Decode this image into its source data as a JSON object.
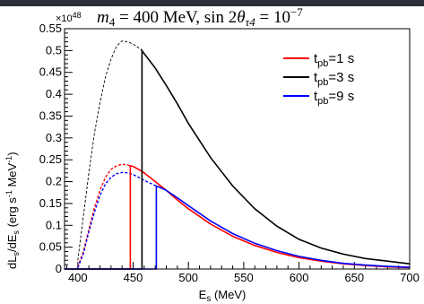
{
  "chart_data": {
    "type": "line",
    "title": "m4 = 400 MeV,  sin 2θτ4 = 10−7",
    "title_parts": {
      "m_symbol": "m",
      "m_sub": "4",
      "m_value": " = 400 MeV,  sin 2",
      "theta": "θ",
      "theta_sub": "τ4",
      "equals": " = 10",
      "power": "−7"
    },
    "y_multiplier": "×10",
    "y_multiplier_exp": "48",
    "xlabel_main": "E",
    "xlabel_sub": "s",
    "xlabel_unit": " (MeV)",
    "ylabel_parts": {
      "d1": "dL",
      "s1": "s",
      "mid": "/dE",
      "s2": "s",
      "unit": " (erg s",
      "e1": "-1",
      "mev": " MeV",
      "e2": "-1",
      "close": ")"
    },
    "xlim": [
      388,
      700
    ],
    "ylim": [
      0,
      0.55
    ],
    "x_ticks": [
      400,
      450,
      500,
      550,
      600,
      650,
      700
    ],
    "x_tick_labels": [
      "400",
      "450",
      "500",
      "550",
      "600",
      "650",
      "700"
    ],
    "y_ticks": [
      0,
      0.05,
      0.1,
      0.15,
      0.2,
      0.25,
      0.3,
      0.35,
      0.4,
      0.45,
      0.5,
      0.55
    ],
    "y_tick_labels": [
      "0",
      "0.05",
      "0.1",
      "0.15",
      "0.2",
      "0.25",
      "0.3",
      "0.35",
      "0.4",
      "0.45",
      "0.5",
      "0.55"
    ],
    "legend_position": "top-right",
    "grid": false,
    "series": [
      {
        "name": "t_pb=1 s",
        "legend_main": "t",
        "legend_sub": "pb",
        "legend_rest": "=1 s",
        "color": "#ff0000",
        "cutoff": 447.5,
        "dashed": {
          "x": [
            400,
            405,
            410,
            415,
            420,
            425,
            430,
            435,
            440,
            445,
            447.5
          ],
          "y": [
            0.005,
            0.04,
            0.09,
            0.14,
            0.18,
            0.21,
            0.228,
            0.236,
            0.24,
            0.238,
            0.236
          ]
        },
        "solid": {
          "x": [
            388,
            447.5,
            447.5,
            450,
            455,
            460,
            470,
            480,
            490,
            500,
            520,
            540,
            560,
            580,
            600,
            620,
            640,
            660,
            680,
            700
          ],
          "y": [
            0,
            0,
            0.236,
            0.235,
            0.228,
            0.22,
            0.2,
            0.18,
            0.158,
            0.138,
            0.103,
            0.075,
            0.054,
            0.038,
            0.026,
            0.018,
            0.012,
            0.008,
            0.005,
            0.003
          ]
        }
      },
      {
        "name": "t_pb=3 s",
        "legend_main": "t",
        "legend_sub": "pb",
        "legend_rest": "=3 s",
        "color": "#000000",
        "cutoff": 458,
        "dashed": {
          "x": [
            400,
            405,
            410,
            415,
            420,
            425,
            430,
            435,
            440,
            445,
            450,
            455,
            458
          ],
          "y": [
            0.02,
            0.12,
            0.22,
            0.31,
            0.38,
            0.44,
            0.48,
            0.51,
            0.522,
            0.52,
            0.515,
            0.506,
            0.5
          ]
        },
        "solid": {
          "x": [
            388,
            458,
            458,
            460,
            470,
            480,
            490,
            500,
            520,
            540,
            560,
            580,
            600,
            620,
            640,
            660,
            680,
            700
          ],
          "y": [
            0,
            0,
            0.5,
            0.493,
            0.46,
            0.42,
            0.378,
            0.333,
            0.255,
            0.19,
            0.138,
            0.098,
            0.068,
            0.048,
            0.034,
            0.024,
            0.018,
            0.012
          ]
        }
      },
      {
        "name": "t_pb=9 s",
        "legend_main": "t",
        "legend_sub": "pb",
        "legend_rest": "=9 s",
        "color": "#0000ff",
        "cutoff": 471,
        "dashed": {
          "x": [
            400,
            405,
            410,
            415,
            420,
            425,
            430,
            435,
            440,
            445,
            450,
            455,
            460,
            465,
            471
          ],
          "y": [
            0.003,
            0.035,
            0.085,
            0.13,
            0.168,
            0.195,
            0.21,
            0.218,
            0.221,
            0.22,
            0.216,
            0.21,
            0.203,
            0.197,
            0.19
          ]
        },
        "solid": {
          "x": [
            388,
            471,
            471,
            475,
            480,
            490,
            500,
            520,
            540,
            560,
            580,
            600,
            620,
            640,
            660,
            680,
            700
          ],
          "y": [
            0,
            0,
            0.19,
            0.186,
            0.18,
            0.163,
            0.145,
            0.11,
            0.081,
            0.059,
            0.042,
            0.029,
            0.02,
            0.013,
            0.009,
            0.006,
            0.004
          ]
        }
      }
    ]
  }
}
